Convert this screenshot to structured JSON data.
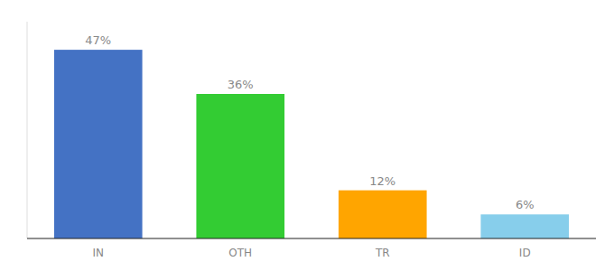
{
  "chart_data": {
    "type": "bar",
    "categories": [
      "IN",
      "OTH",
      "TR",
      "ID"
    ],
    "values": [
      47,
      36,
      12,
      6
    ],
    "value_labels": [
      "47%",
      "36%",
      "12%",
      "6%"
    ],
    "colors": [
      "#4472C4",
      "#33CC33",
      "#FFA500",
      "#87CEEB"
    ],
    "ylim": [
      0,
      54
    ],
    "data_labels": true,
    "tick_labels": "x",
    "grid": false
  }
}
